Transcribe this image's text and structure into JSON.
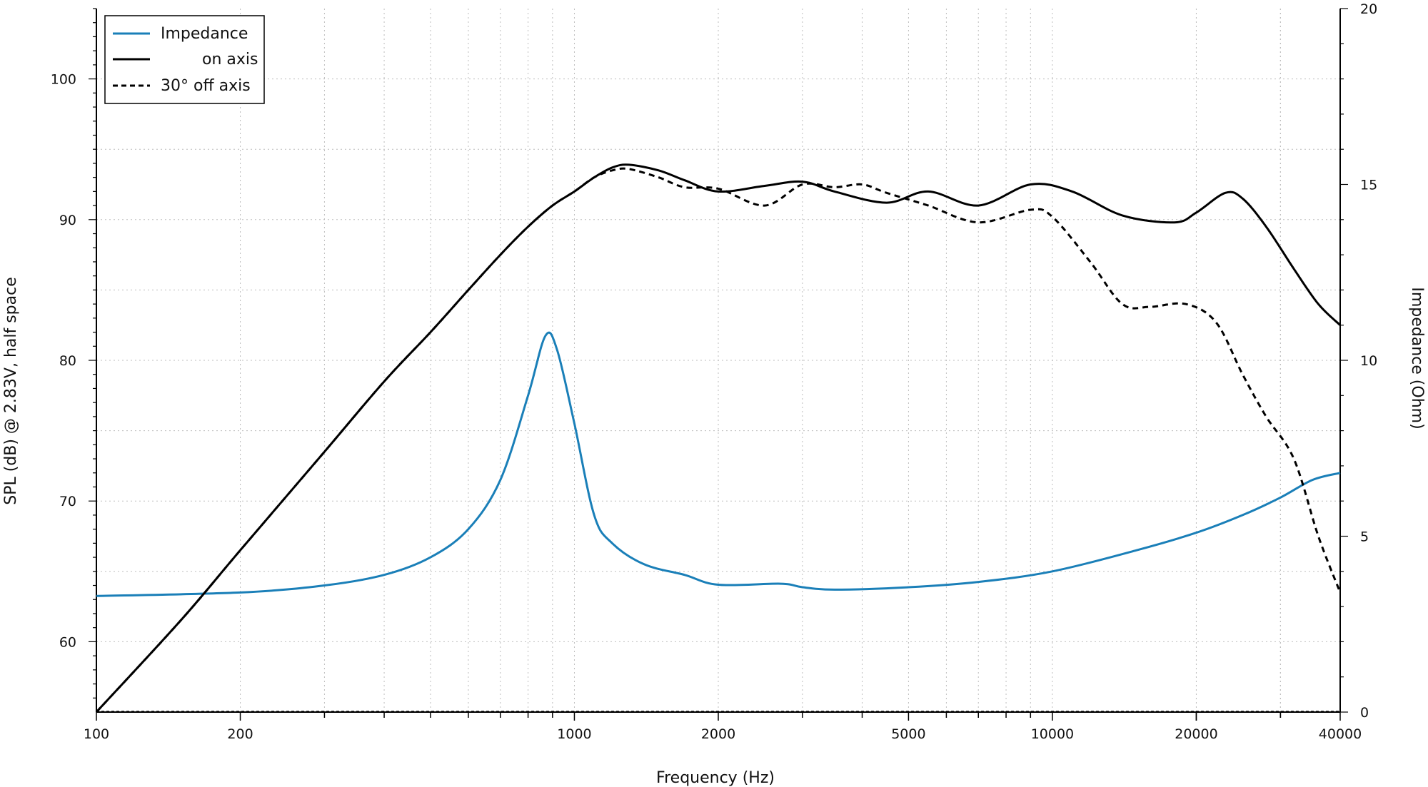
{
  "chart_data": {
    "type": "line",
    "xlabel": "Frequency (Hz)",
    "ylabel_left": "SPL (dB) @ 2.83V, half space",
    "ylabel_right": "Impedance (Ohm)",
    "x_scale": "log",
    "xlim": [
      100,
      40000
    ],
    "ylim_left": [
      55,
      105
    ],
    "ylim_right": [
      0,
      20
    ],
    "grid": true,
    "legend_position": "top-left",
    "x_ticks": [
      100,
      200,
      1000,
      2000,
      5000,
      10000,
      20000,
      40000
    ],
    "x_tick_labels": [
      "100",
      "200",
      "1000",
      "2000",
      "5000",
      "10000",
      "20000",
      "40000"
    ],
    "y_left_ticks": [
      60,
      70,
      80,
      90,
      100
    ],
    "y_left_tick_labels": [
      "60",
      "70",
      "80",
      "90",
      "100"
    ],
    "y_right_ticks": [
      0,
      5,
      10,
      15,
      20
    ],
    "y_right_tick_labels": [
      "0",
      "5",
      "10",
      "15",
      "20"
    ],
    "series": [
      {
        "name": "Impedance",
        "axis": "right",
        "color": "#1a7fb8",
        "style": "solid",
        "points": [
          [
            100,
            3.3
          ],
          [
            200,
            3.4
          ],
          [
            300,
            3.6
          ],
          [
            400,
            3.9
          ],
          [
            500,
            4.4
          ],
          [
            600,
            5.2
          ],
          [
            700,
            6.6
          ],
          [
            800,
            9.0
          ],
          [
            870,
            10.7
          ],
          [
            920,
            10.3
          ],
          [
            1000,
            8.2
          ],
          [
            1100,
            5.6
          ],
          [
            1200,
            4.8
          ],
          [
            1400,
            4.2
          ],
          [
            1700,
            3.9
          ],
          [
            2000,
            3.62
          ],
          [
            2700,
            3.65
          ],
          [
            3000,
            3.55
          ],
          [
            3500,
            3.48
          ],
          [
            5000,
            3.55
          ],
          [
            7000,
            3.7
          ],
          [
            10000,
            4.0
          ],
          [
            15000,
            4.6
          ],
          [
            20000,
            5.1
          ],
          [
            25000,
            5.6
          ],
          [
            30000,
            6.1
          ],
          [
            35000,
            6.6
          ],
          [
            40000,
            6.8
          ]
        ]
      },
      {
        "name": "on axis",
        "axis": "left",
        "color": "#000000",
        "style": "solid",
        "points": [
          [
            100,
            55.0
          ],
          [
            150,
            61.5
          ],
          [
            200,
            66.5
          ],
          [
            300,
            73.5
          ],
          [
            400,
            78.5
          ],
          [
            500,
            82.0
          ],
          [
            600,
            85.0
          ],
          [
            700,
            87.5
          ],
          [
            800,
            89.5
          ],
          [
            900,
            91.0
          ],
          [
            1000,
            92.0
          ],
          [
            1100,
            93.0
          ],
          [
            1200,
            93.7
          ],
          [
            1300,
            93.9
          ],
          [
            1500,
            93.5
          ],
          [
            1700,
            92.8
          ],
          [
            2000,
            92.0
          ],
          [
            2500,
            92.4
          ],
          [
            3000,
            92.7
          ],
          [
            3500,
            92.0
          ],
          [
            4500,
            91.2
          ],
          [
            5500,
            92.0
          ],
          [
            7000,
            91.0
          ],
          [
            9000,
            92.5
          ],
          [
            11000,
            92.0
          ],
          [
            14000,
            90.3
          ],
          [
            18000,
            89.8
          ],
          [
            20000,
            90.5
          ],
          [
            23000,
            91.9
          ],
          [
            25000,
            91.5
          ],
          [
            28000,
            89.5
          ],
          [
            32000,
            86.5
          ],
          [
            36000,
            84.0
          ],
          [
            40000,
            82.5
          ]
        ]
      },
      {
        "name": "30° off axis",
        "axis": "left",
        "color": "#000000",
        "style": "dashed",
        "points": [
          [
            100,
            55.0
          ],
          [
            150,
            61.5
          ],
          [
            200,
            66.5
          ],
          [
            300,
            73.5
          ],
          [
            400,
            78.5
          ],
          [
            500,
            82.0
          ],
          [
            600,
            85.0
          ],
          [
            700,
            87.5
          ],
          [
            800,
            89.5
          ],
          [
            900,
            91.0
          ],
          [
            1000,
            92.0
          ],
          [
            1100,
            93.0
          ],
          [
            1200,
            93.5
          ],
          [
            1300,
            93.6
          ],
          [
            1500,
            93.0
          ],
          [
            1700,
            92.3
          ],
          [
            2000,
            92.2
          ],
          [
            2500,
            91.0
          ],
          [
            3000,
            92.5
          ],
          [
            3500,
            92.3
          ],
          [
            4000,
            92.5
          ],
          [
            4500,
            91.9
          ],
          [
            5500,
            91.0
          ],
          [
            7000,
            89.8
          ],
          [
            9000,
            90.7
          ],
          [
            10000,
            90.2
          ],
          [
            12000,
            87.0
          ],
          [
            14000,
            84.0
          ],
          [
            16000,
            83.8
          ],
          [
            19000,
            84.0
          ],
          [
            22000,
            82.7
          ],
          [
            25000,
            79.0
          ],
          [
            28000,
            76.0
          ],
          [
            32000,
            73.0
          ],
          [
            36000,
            67.5
          ],
          [
            40000,
            63.5
          ]
        ]
      }
    ]
  }
}
